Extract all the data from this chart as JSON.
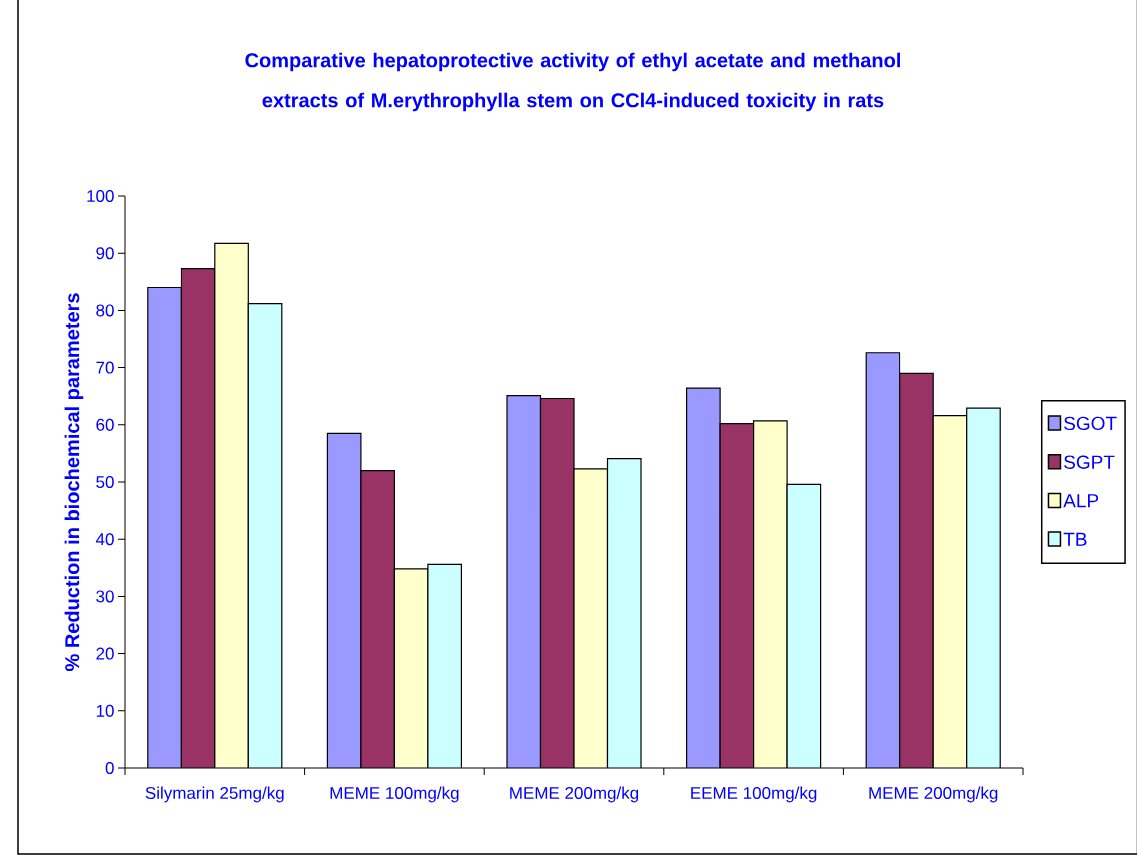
{
  "chart_data": {
    "type": "bar",
    "title": "Comparative hepatoprotective activity of ethyl acetate and  methanol extracts of M.erythrophylla  stem on CCl4-induced toxicity in rats",
    "ylabel": "% Reduction in biochemical parameters",
    "categories": [
      "Silymarin 25mg/kg",
      "MEME 100mg/kg",
      "MEME 200mg/kg",
      "EEME 100mg/kg",
      "MEME 200mg/kg"
    ],
    "series": [
      {
        "name": "SGOT",
        "color": "#9999ff",
        "values": [
          84,
          58.5,
          65.1,
          66.4,
          72.6
        ]
      },
      {
        "name": "SGPT",
        "color": "#993366",
        "values": [
          87.3,
          52,
          64.6,
          60.2,
          69
        ]
      },
      {
        "name": "ALP",
        "color": "#ffffcc",
        "values": [
          91.7,
          34.8,
          52.3,
          60.7,
          61.6
        ]
      },
      {
        "name": "TB",
        "color": "#ccffff",
        "values": [
          81.2,
          35.6,
          54.1,
          49.6,
          62.9
        ]
      }
    ],
    "ylim": [
      0,
      100
    ],
    "yticks": [
      0,
      10,
      20,
      30,
      40,
      50,
      60,
      70,
      80,
      90,
      100
    ],
    "grid": false,
    "legend": "right"
  }
}
